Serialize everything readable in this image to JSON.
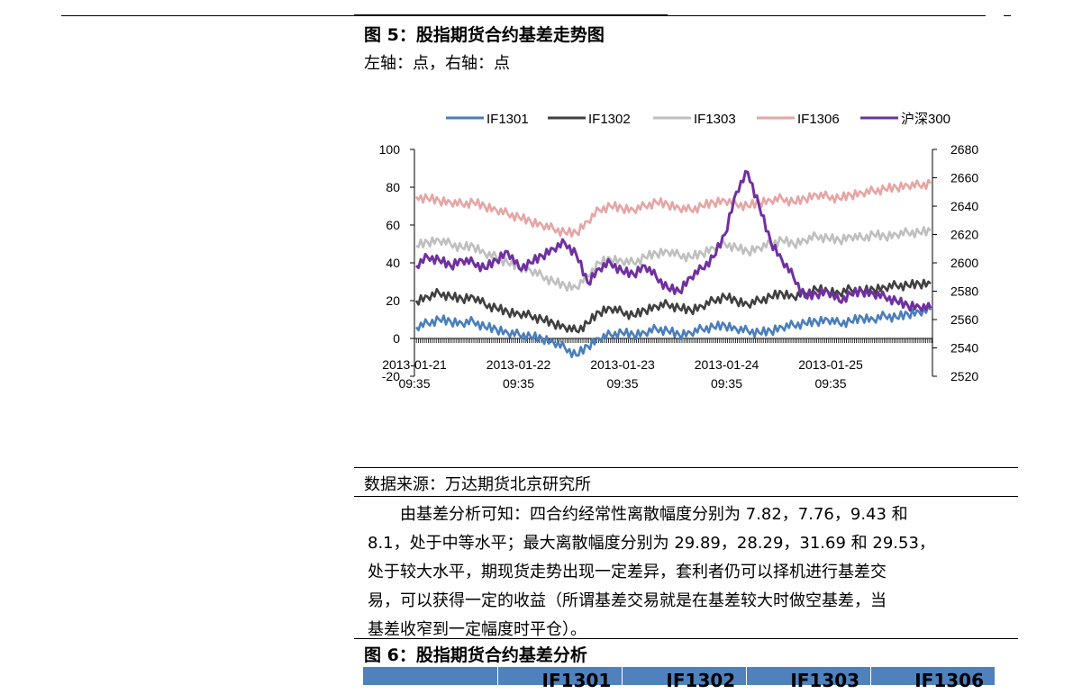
{
  "figure5": {
    "title": "图 5：股指期货合约基差走势图",
    "subtitle": "左轴：点，右轴：点"
  },
  "chart_data": {
    "type": "line",
    "legend_position": "top",
    "grid": false,
    "x_tick_labels": [
      "2013-01-21 09:35",
      "2013-01-22 09:35",
      "2013-01-23 09:35",
      "2013-01-24 09:35",
      "2013-01-25 09:35"
    ],
    "y_left": {
      "ticks": [
        -20,
        0,
        20,
        40,
        60,
        80,
        100
      ],
      "ylim": [
        -20,
        100
      ]
    },
    "y_right": {
      "ticks": [
        2520,
        2540,
        2560,
        2580,
        2600,
        2620,
        2640,
        2660,
        2680
      ],
      "ylim": [
        2520,
        2680
      ]
    },
    "series": [
      {
        "name": "IF1301",
        "axis": "left",
        "color": "#4a7ebb",
        "values": [
          6,
          8,
          10,
          9,
          8,
          9,
          6,
          5,
          3,
          2,
          1,
          0,
          -2,
          -5,
          -9,
          -4,
          0,
          2,
          3,
          2,
          3,
          5,
          4,
          2,
          3,
          5,
          6,
          7,
          5,
          4,
          3,
          4,
          6,
          7,
          8,
          9,
          10,
          8,
          9,
          11,
          10,
          12,
          11,
          13,
          14,
          15
        ]
      },
      {
        "name": "IF1302",
        "axis": "left",
        "color": "#404040",
        "values": [
          20,
          22,
          24,
          22,
          21,
          22,
          18,
          16,
          14,
          13,
          12,
          10,
          8,
          6,
          4,
          8,
          14,
          16,
          14,
          12,
          15,
          17,
          18,
          16,
          15,
          17,
          20,
          22,
          20,
          18,
          20,
          22,
          24,
          22,
          24,
          26,
          25,
          24,
          26,
          25,
          26,
          27,
          28,
          28,
          29,
          29
        ]
      },
      {
        "name": "IF1303",
        "axis": "left",
        "color": "#bfbfbf",
        "values": [
          49,
          51,
          52,
          50,
          48,
          49,
          45,
          43,
          40,
          38,
          36,
          33,
          30,
          28,
          27,
          33,
          40,
          42,
          41,
          40,
          43,
          45,
          46,
          44,
          43,
          45,
          48,
          50,
          48,
          46,
          48,
          50,
          52,
          50,
          52,
          54,
          53,
          52,
          54,
          53,
          55,
          54,
          55,
          56,
          56,
          57
        ]
      },
      {
        "name": "IF1306",
        "axis": "left",
        "color": "#e6a5a5",
        "values": [
          75,
          74,
          73,
          72,
          71,
          72,
          70,
          68,
          66,
          64,
          62,
          60,
          58,
          56,
          56,
          62,
          68,
          70,
          69,
          68,
          70,
          72,
          71,
          69,
          68,
          70,
          72,
          73,
          71,
          70,
          72,
          73,
          74,
          72,
          74,
          76,
          75,
          74,
          76,
          77,
          78,
          79,
          80,
          81,
          81,
          82
        ]
      },
      {
        "name": "沪深300",
        "axis": "right",
        "color": "#7030a0",
        "values": [
          2598,
          2604,
          2602,
          2598,
          2602,
          2600,
          2596,
          2602,
          2608,
          2596,
          2600,
          2605,
          2610,
          2614,
          2606,
          2586,
          2596,
          2600,
          2594,
          2592,
          2598,
          2590,
          2582,
          2580,
          2590,
          2596,
          2604,
          2620,
          2650,
          2664,
          2640,
          2615,
          2602,
          2590,
          2576,
          2578,
          2580,
          2573,
          2578,
          2580,
          2578,
          2576,
          2573,
          2570,
          2569,
          2568
        ]
      }
    ]
  },
  "source": "数据来源：万达期货北京研究所",
  "paragraph": [
    "　　由基差分析可知：四合约经常性离散幅度分别为 7.82，7.76，9.43 和",
    "8.1，处于中等水平；最大离散幅度分别为 29.89，28.29，31.69 和 29.53，",
    "处于较大水平，期现货走势出现一定差异，套利者仍可以择机进行基差交",
    "易，可以获得一定的收益（所谓基差交易就是在基差较大时做空基差，当",
    "基差收窄到一定幅度时平仓）。"
  ],
  "figure6": {
    "title": "图 6：股指期货合约基差分析",
    "table_header": [
      "",
      "IF1301",
      "IF1302",
      "IF1303",
      "IF1306"
    ]
  }
}
